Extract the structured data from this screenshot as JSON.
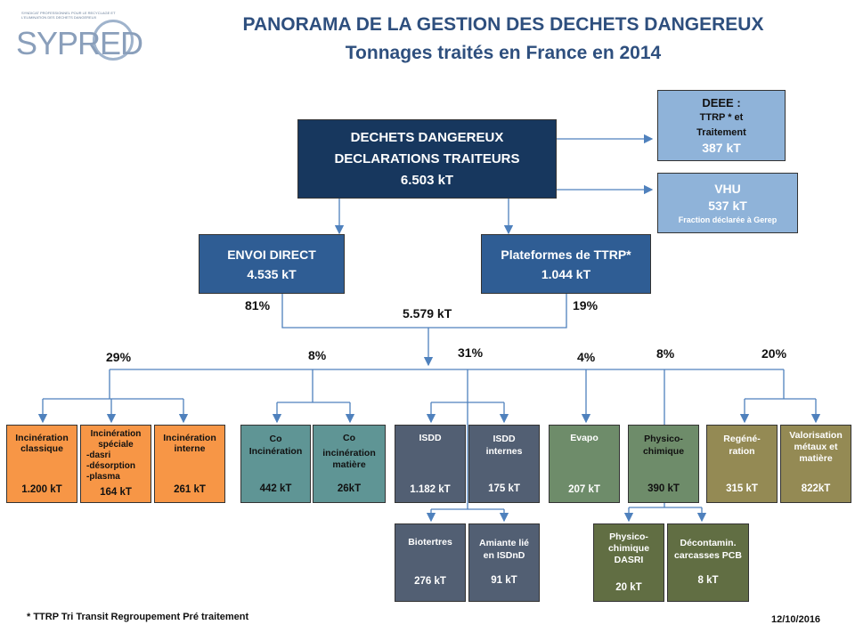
{
  "logo": {
    "text": "SYPRED",
    "subtitle": "SYNDICAT PROFESSIONNEL POUR LE RECYCLAGE ET L'ELIMINATION DES DECHETS DANGEREUX"
  },
  "title": {
    "line1": "PANORAMA DE LA GESTION DES DECHETS DANGEREUX",
    "line2": "Tonnages traités en France en 2014"
  },
  "main_box": {
    "line1": "DECHETS DANGEREUX",
    "line2": "DECLARATIONS TRAITEURS",
    "value": "6.503 kT"
  },
  "deee": {
    "line1": "DEEE :",
    "line2": "TTRP * et",
    "line3": "Traitement",
    "value": "387 kT"
  },
  "vhu": {
    "line1": "VHU",
    "value": "537 kT",
    "note": "Fraction déclarée à Gerep"
  },
  "envoi_direct": {
    "label": "ENVOI DIRECT",
    "value": "4.535 kT",
    "pct": "81%"
  },
  "plateformes": {
    "label": "Plateformes de TTRP*",
    "value": "1.044 kT",
    "pct": "19%"
  },
  "merge_total": "5.579 kT",
  "branch_pcts": [
    "29%",
    "8%",
    "31%",
    "4%",
    "8%",
    "20%"
  ],
  "leaves": [
    {
      "lines": [
        "Incinération",
        "classique"
      ],
      "value": "1.200 kT"
    },
    {
      "lines": [
        "Incinération",
        "spéciale",
        "-dasri",
        "-désorption",
        "-plasma"
      ],
      "value": "164 kT"
    },
    {
      "lines": [
        "Incinération",
        "interne"
      ],
      "value": "261 kT"
    },
    {
      "lines": [
        "Co",
        "Incinération"
      ],
      "value": "442 kT"
    },
    {
      "lines": [
        "Co",
        "incinération",
        "matière"
      ],
      "value": "26kT"
    },
    {
      "lines": [
        "ISDD"
      ],
      "value": "1.182 kT"
    },
    {
      "lines": [
        "ISDD",
        "internes"
      ],
      "value": "175 kT"
    },
    {
      "lines": [
        "Evapo"
      ],
      "value": "207 kT"
    },
    {
      "lines": [
        "Physico-",
        "chimique"
      ],
      "value": "390 kT"
    },
    {
      "lines": [
        "Regéné-",
        "ration"
      ],
      "value": "315 kT"
    },
    {
      "lines": [
        "Valorisation",
        "métaux et",
        "matière"
      ],
      "value": "822kT"
    }
  ],
  "sub_leaves": [
    {
      "lines": [
        "Biotertres"
      ],
      "value": "276 kT"
    },
    {
      "lines": [
        "Amiante lié",
        "en ISDnD"
      ],
      "value": "91 kT"
    },
    {
      "lines": [
        "Physico-",
        "chimique",
        "DASRI"
      ],
      "value": "20 kT"
    },
    {
      "lines": [
        "Décontamin.",
        "carcasses PCB"
      ],
      "value": "8 kT"
    }
  ],
  "footnote": "* TTRP  Tri Transit  Regroupement Pré traitement",
  "date": "12/10/2016",
  "colors": {
    "dark_blue": "#17375e",
    "mid_blue": "#2f5d94",
    "light_blue": "#8fb3d9",
    "orange": "#f79646",
    "teal": "#5f9595",
    "slate": "#525f73",
    "green": "#6e8c6a",
    "olive": "#616e43",
    "khaki": "#948a54",
    "line": "#4f81bd"
  }
}
